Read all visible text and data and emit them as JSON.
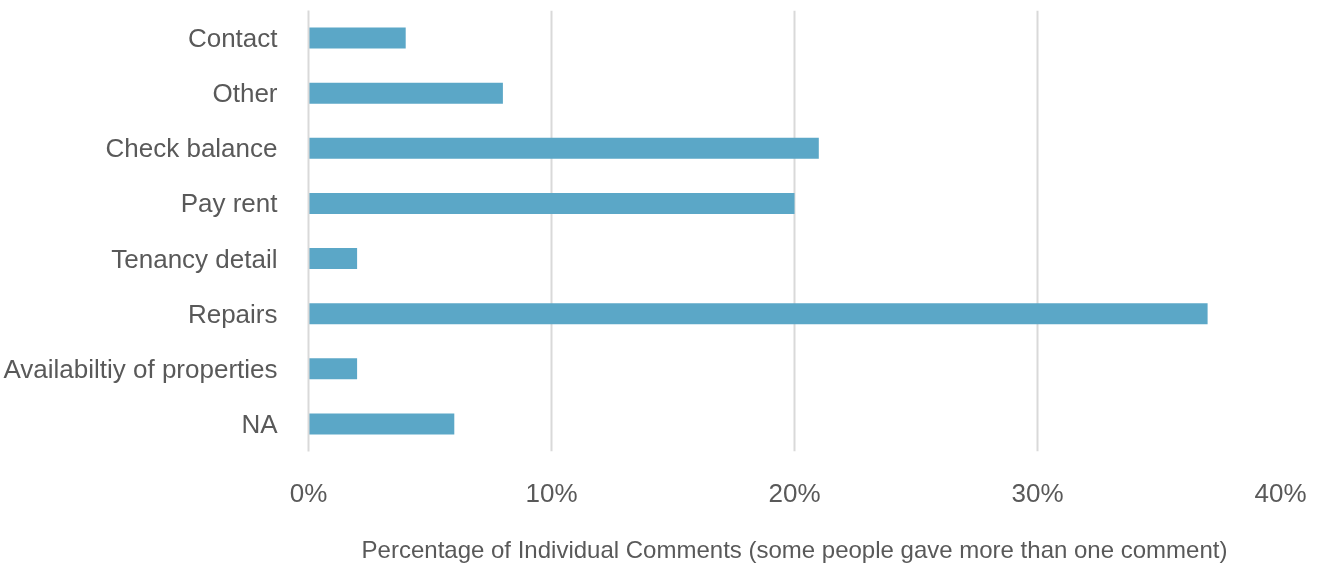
{
  "chart_data": {
    "type": "bar",
    "orientation": "horizontal",
    "categories": [
      "Contact",
      "Other",
      "Check balance",
      "Pay rent",
      "Tenancy detail",
      "Repairs",
      "Availabiltiy of properties",
      "NA"
    ],
    "values": [
      4,
      8,
      21,
      20,
      2,
      37,
      2,
      6
    ],
    "color": "#5ba7c7",
    "xlabel": "Percentage of Individual Comments (some people gave more than one comment)",
    "xlim": [
      0,
      40
    ],
    "xticks": [
      {
        "value": 0,
        "label": "0%"
      },
      {
        "value": 10,
        "label": "10%"
      },
      {
        "value": 20,
        "label": "20%"
      },
      {
        "value": 30,
        "label": "30%"
      },
      {
        "value": 40,
        "label": "40%"
      }
    ],
    "grid": "x"
  }
}
